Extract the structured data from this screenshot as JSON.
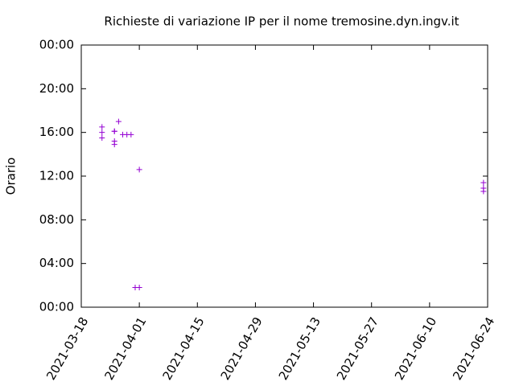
{
  "chart_data": {
    "type": "scatter",
    "title": "Richieste di variazione IP per il nome tremosine.dyn.ingv.it",
    "y_label": "Orario",
    "x": [
      "2021-03-23",
      "2021-03-23",
      "2021-03-23",
      "2021-03-26",
      "2021-03-26",
      "2021-03-26",
      "2021-03-27",
      "2021-03-26",
      "2021-03-28",
      "2021-03-29",
      "2021-03-30",
      "2021-03-31",
      "2021-04-01",
      "2021-04-01",
      "2021-06-23",
      "2021-06-23",
      "2021-06-23"
    ],
    "series": [
      {
        "color": "#9400d3",
        "values": [
          16.5,
          16.0,
          15.5,
          16.1,
          15.2,
          14.9,
          17.0,
          16.1,
          15.8,
          15.8,
          15.8,
          1.8,
          1.8,
          12.6,
          11.4,
          10.9,
          10.6
        ]
      }
    ],
    "xlim": [
      "2021-03-18",
      "2021-06-24"
    ],
    "xticks": [
      "2021-03-18",
      "2021-04-01",
      "2021-04-15",
      "2021-04-29",
      "2021-05-13",
      "2021-05-27",
      "2021-06-10",
      "2021-06-24"
    ],
    "ylim": [
      0,
      24
    ],
    "yticks": [
      {
        "value": 0,
        "label": "00:00"
      },
      {
        "value": 4,
        "label": "04:00"
      },
      {
        "value": 8,
        "label": "08:00"
      },
      {
        "value": 12,
        "label": "12:00"
      },
      {
        "value": 16,
        "label": "16:00"
      },
      {
        "value": 20,
        "label": "20:00"
      },
      {
        "value": 24,
        "label": "00:00"
      }
    ]
  }
}
